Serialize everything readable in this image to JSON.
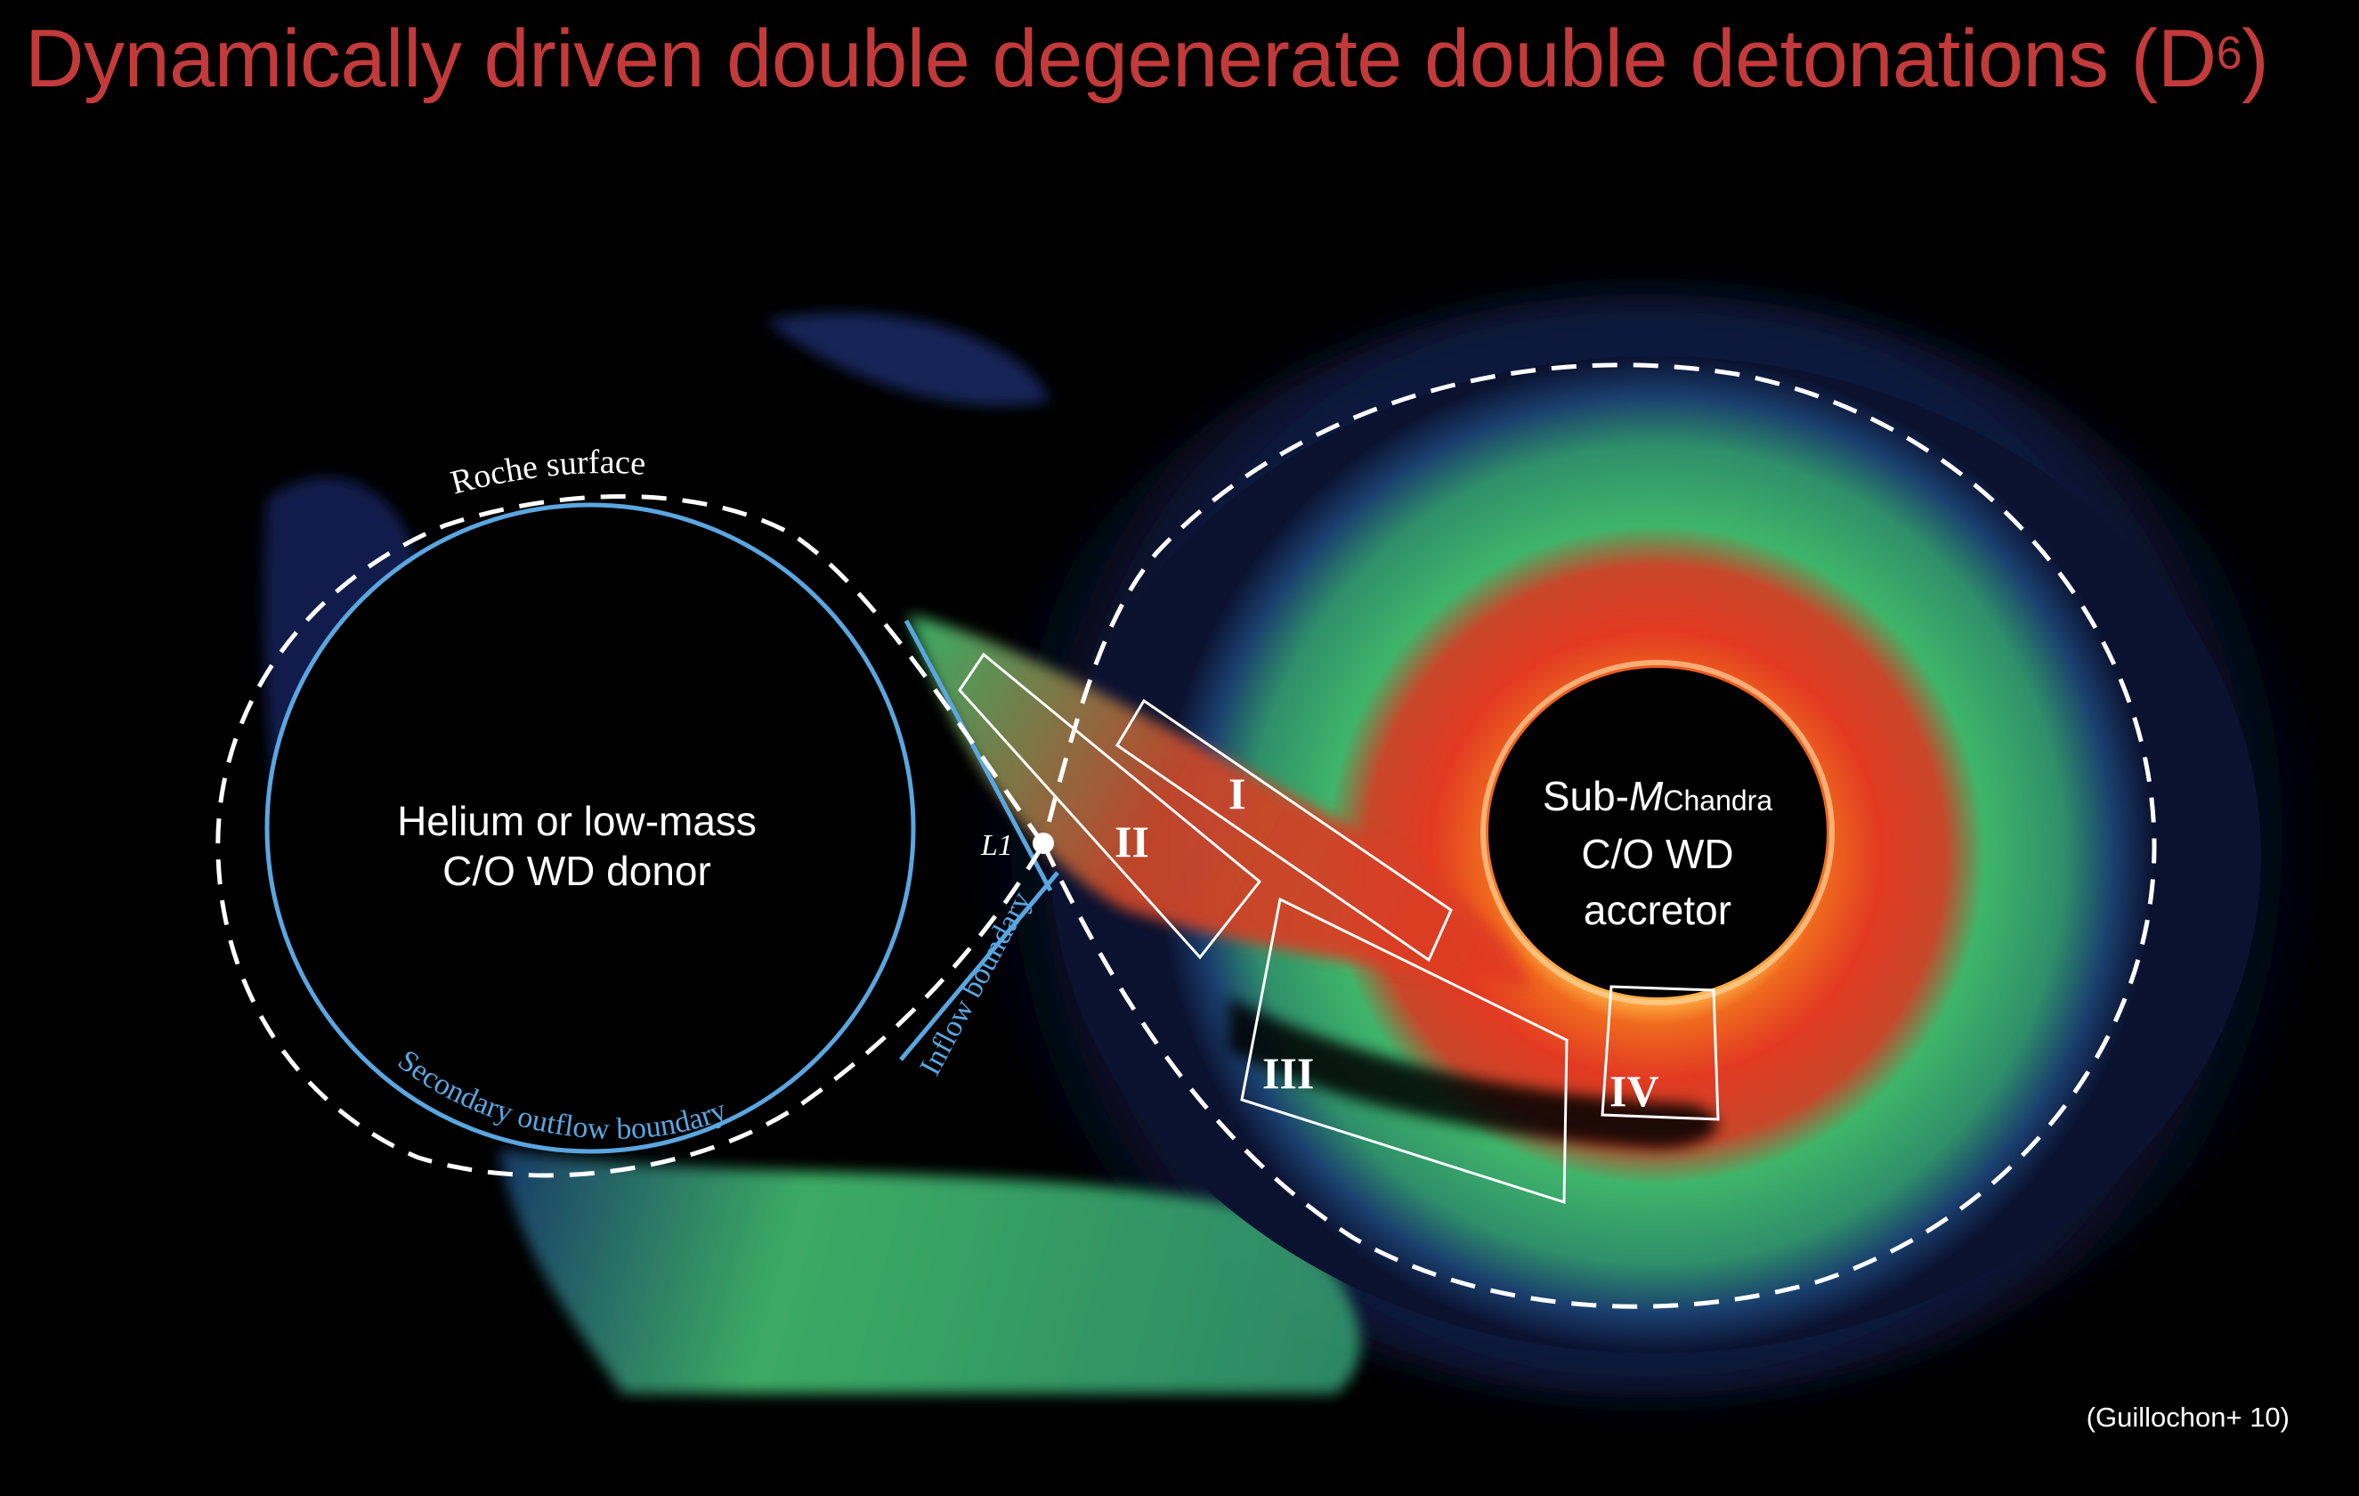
{
  "title": {
    "text": "Dynamically driven double degenerate double detonations (D",
    "superscript": "6",
    "close": ")"
  },
  "citation": "(Guillochon+ 10)",
  "labels": {
    "roche_surface": "Roche surface",
    "secondary_outflow_boundary": "Secondary outflow boundary",
    "inflow_boundary": "Inflow boundary",
    "lagrange_point": "L1",
    "donor_line1": "Helium or low-mass",
    "donor_line2": "C/O WD donor",
    "accretor_line1_prefix": "Sub-",
    "accretor_line1_m": "M",
    "accretor_line1_sub": "Chandra",
    "accretor_line2": "C/O WD",
    "accretor_line3": "accretor",
    "region_1": "I",
    "region_2": "II",
    "region_3": "III",
    "region_4": "IV"
  },
  "colors": {
    "title": "#c33a3a",
    "boundary_blue": "#5aa6e0",
    "dashed_white": "#ffffff",
    "flow_green": "#3fb56a",
    "hot_red": "#e23a22",
    "background": "#000000",
    "cold_blue": "#1a2a66"
  }
}
